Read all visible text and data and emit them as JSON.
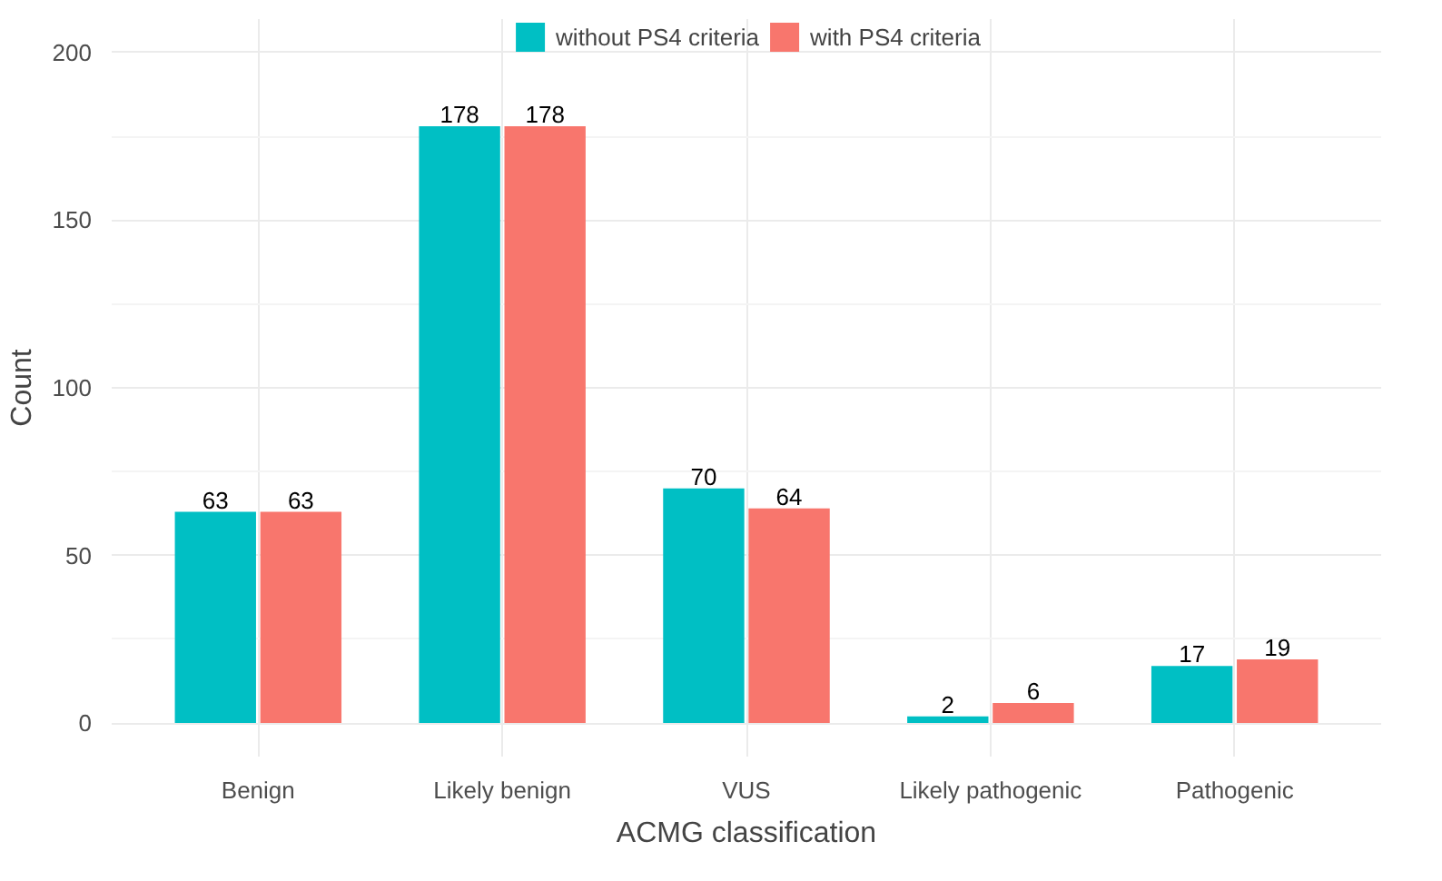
{
  "chart_data": {
    "type": "bar",
    "xlabel": "ACMG classification",
    "ylabel": "Count",
    "categories": [
      "Benign",
      "Likely benign",
      "VUS",
      "Likely pathogenic",
      "Pathogenic"
    ],
    "series": [
      {
        "name": "without PS4 criteria",
        "color": "#00bfc4",
        "values": [
          63,
          178,
          70,
          2,
          17
        ]
      },
      {
        "name": "with PS4 criteria",
        "color": "#f8766d",
        "values": [
          63,
          178,
          64,
          6,
          19
        ]
      }
    ],
    "ylim": [
      -10,
      210
    ],
    "yticks": [
      0,
      50,
      100,
      150,
      200
    ],
    "grid": true,
    "legend": "top",
    "data_labels": true
  }
}
